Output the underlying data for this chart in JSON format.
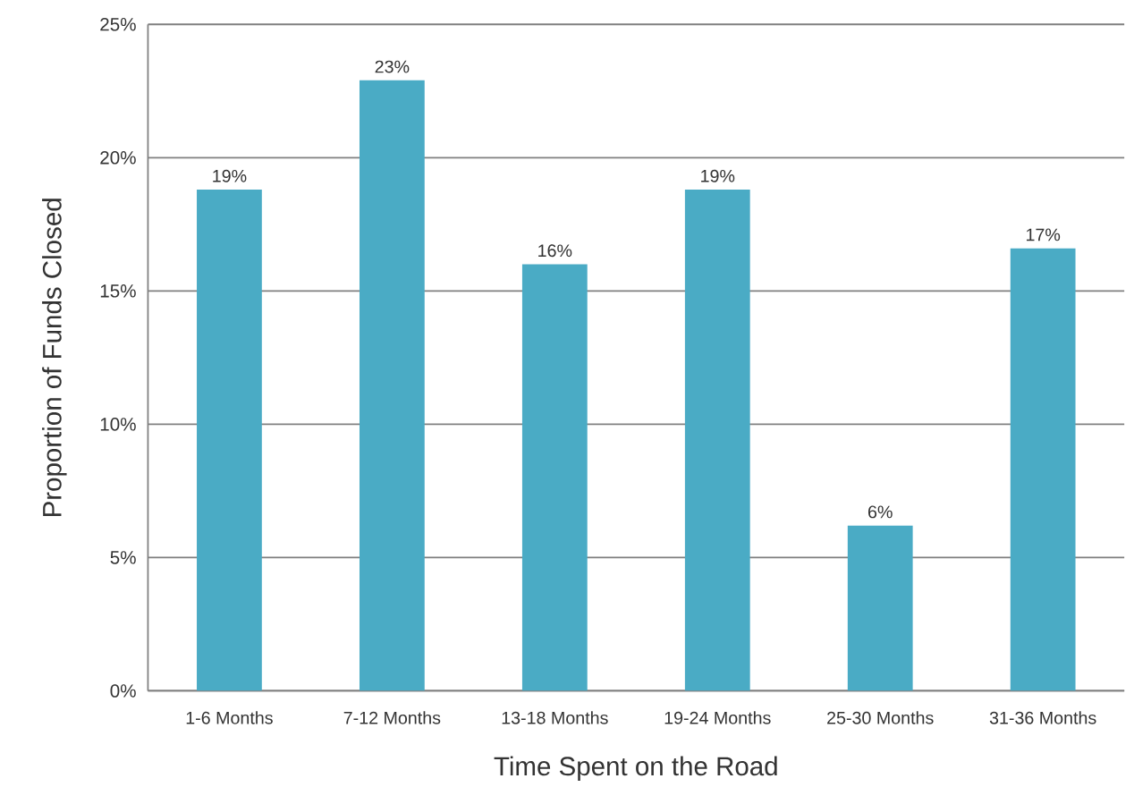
{
  "chart_data": {
    "type": "bar",
    "xlabel": "Time Spent on the Road",
    "ylabel": "Proportion of Funds Closed",
    "categories": [
      "1-6 Months",
      "7-12 Months",
      "13-18 Months",
      "19-24 Months",
      "25-30 Months",
      "31-36 Months"
    ],
    "values": [
      18.8,
      22.9,
      16.0,
      18.8,
      6.2,
      16.6
    ],
    "value_labels": [
      "19%",
      "23%",
      "16%",
      "19%",
      "6%",
      "17%"
    ],
    "color": "#4aabc5",
    "ylim": [
      0,
      25
    ],
    "yticks": [
      {
        "value": 0,
        "label": "0%"
      },
      {
        "value": 5,
        "label": "5%"
      },
      {
        "value": 10,
        "label": "10%"
      },
      {
        "value": 15,
        "label": "15%"
      },
      {
        "value": 20,
        "label": "20%"
      },
      {
        "value": 25,
        "label": "25%"
      }
    ],
    "grid": "y"
  }
}
